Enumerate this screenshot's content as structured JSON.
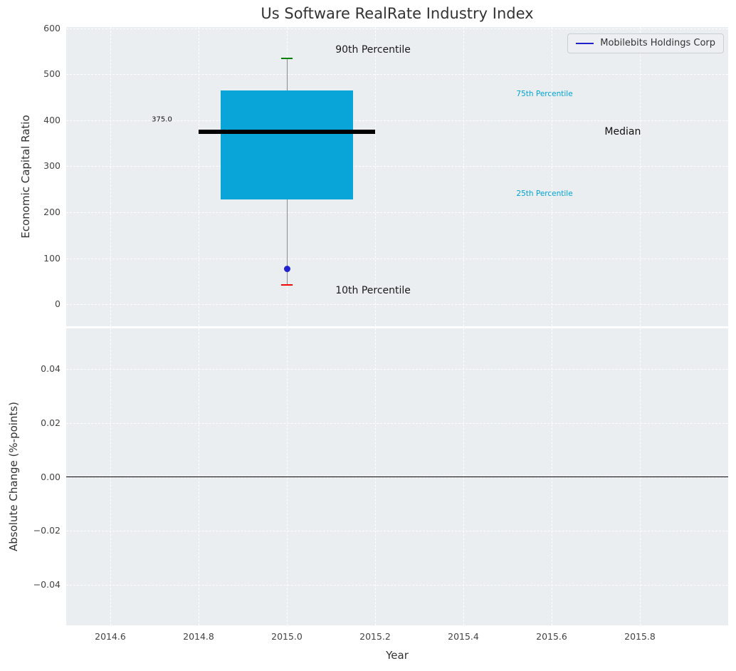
{
  "title": "Us Software RealRate Industry Index",
  "legend": {
    "label": "Mobilebits Holdings Corp",
    "color": "#2222cc"
  },
  "x_axis": {
    "label": "Year",
    "ticks": [
      2014.6,
      2014.8,
      2015.0,
      2015.2,
      2015.4,
      2015.6,
      2015.8
    ],
    "lim": [
      2014.5,
      2016.0
    ]
  },
  "chart_data": [
    {
      "type": "box",
      "title": "Us Software RealRate Industry Index",
      "ylabel": "Economic Capital Ratio",
      "ylim": [
        -48,
        603
      ],
      "yticks": [
        0,
        100,
        200,
        300,
        400,
        500,
        600
      ],
      "grid": "white-dashed",
      "x": 2015.0,
      "box": {
        "p10": 42,
        "p25": 228,
        "median": 375.0,
        "p75": 465,
        "p90": 535,
        "box_halfwidth_years": 0.15,
        "median_halfwidth_years": 0.2,
        "box_color": "#0aa5d8",
        "median_color": "#000000",
        "whisker_color": "#8a8a8a",
        "p90_cap_color": "#008000",
        "p10_cap_color": "#ff0000"
      },
      "company_point": {
        "name": "Mobilebits Holdings Corp",
        "x": 2015.0,
        "y": 77,
        "color": "#2222cc"
      },
      "annotations": [
        {
          "id": "p90-percentile-label",
          "text": "90th Percentile",
          "x": 2015.11,
          "y": 553,
          "color": "#1a1a1a",
          "size": 14,
          "align": "left"
        },
        {
          "id": "p10-percentile-label",
          "text": "10th Percentile",
          "x": 2015.11,
          "y": 30,
          "color": "#1a1a1a",
          "size": 14,
          "align": "left"
        },
        {
          "id": "p75-percentile-label",
          "text": "75th Percentile",
          "x": 2015.52,
          "y": 458,
          "color": "#00a3d3",
          "size": 10.5,
          "align": "left"
        },
        {
          "id": "p25-percentile-label",
          "text": "25th Percentile",
          "x": 2015.52,
          "y": 241,
          "color": "#00a3d3",
          "size": 10.5,
          "align": "left"
        },
        {
          "id": "median-label",
          "text": "Median",
          "x": 2015.72,
          "y": 375,
          "color": "#111111",
          "size": 14,
          "align": "left"
        },
        {
          "id": "median-value-label",
          "text": "375.0",
          "x": 2014.74,
          "y": 402,
          "color": "#111111",
          "size": 10,
          "align": "right"
        }
      ]
    },
    {
      "type": "line",
      "ylabel": "Absolute Change (%-points)",
      "xlabel": "Year",
      "ylim": [
        -0.055,
        0.055
      ],
      "yticks": [
        0.04,
        0.02,
        0,
        -0.02,
        -0.04
      ],
      "grid": "white-dashed",
      "zero_line": 0,
      "zero_line_color": "#000000",
      "series": []
    }
  ]
}
